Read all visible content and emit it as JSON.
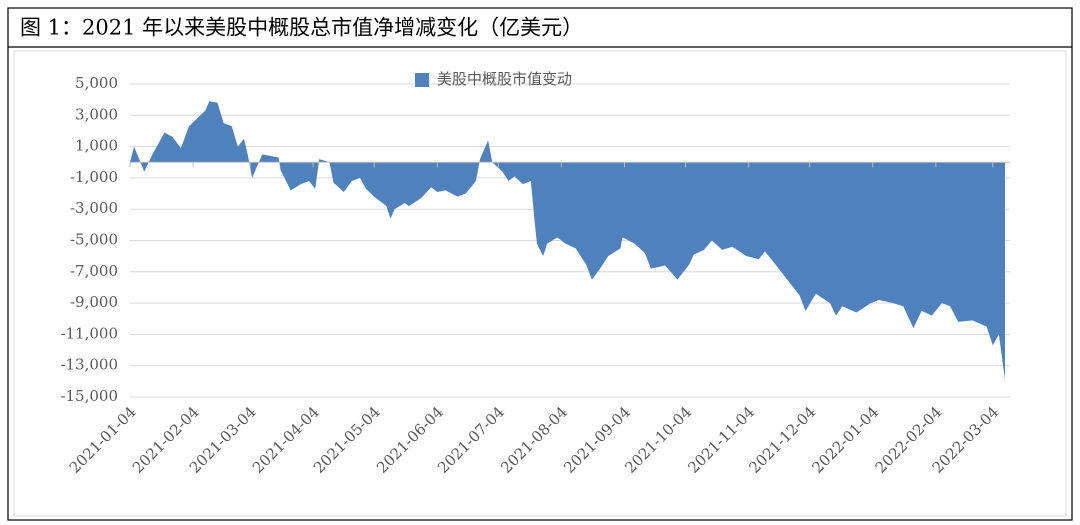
{
  "chart_data": {
    "type": "area",
    "title": "图 1：2021 年以来美股中概股总市值净增减变化（亿美元）",
    "x": [
      "2021-01-04",
      "2021-01-06",
      "2021-01-11",
      "2021-01-15",
      "2021-01-21",
      "2021-01-25",
      "2021-01-29",
      "2021-02-02",
      "2021-02-10",
      "2021-02-12",
      "2021-02-16",
      "2021-02-19",
      "2021-02-23",
      "2021-02-26",
      "2021-03-01",
      "2021-03-03",
      "2021-03-05",
      "2021-03-10",
      "2021-03-18",
      "2021-03-19",
      "2021-03-24",
      "2021-03-29",
      "2021-04-02",
      "2021-04-05",
      "2021-04-07",
      "2021-04-12",
      "2021-04-14",
      "2021-04-19",
      "2021-04-23",
      "2021-04-27",
      "2021-04-30",
      "2021-05-04",
      "2021-05-10",
      "2021-05-12",
      "2021-05-14",
      "2021-05-19",
      "2021-05-21",
      "2021-05-27",
      "2021-06-01",
      "2021-06-04",
      "2021-06-08",
      "2021-06-14",
      "2021-06-18",
      "2021-06-23",
      "2021-06-25",
      "2021-06-29",
      "2021-07-01",
      "2021-07-06",
      "2021-07-09",
      "2021-07-12",
      "2021-07-16",
      "2021-07-20",
      "2021-07-22",
      "2021-07-23",
      "2021-07-26",
      "2021-07-28",
      "2021-08-02",
      "2021-08-06",
      "2021-08-11",
      "2021-08-16",
      "2021-08-19",
      "2021-08-23",
      "2021-08-27",
      "2021-09-02",
      "2021-09-03",
      "2021-09-09",
      "2021-09-14",
      "2021-09-17",
      "2021-09-24",
      "2021-09-30",
      "2021-10-06",
      "2021-10-08",
      "2021-10-13",
      "2021-10-17",
      "2021-10-22",
      "2021-10-27",
      "2021-11-03",
      "2021-11-09",
      "2021-11-12",
      "2021-11-17",
      "2021-11-23",
      "2021-11-29",
      "2021-12-02",
      "2021-12-07",
      "2021-12-14",
      "2021-12-17",
      "2021-12-20",
      "2021-12-27",
      "2022-01-03",
      "2022-01-07",
      "2022-01-14",
      "2022-01-19",
      "2022-01-24",
      "2022-01-28",
      "2022-02-02",
      "2022-02-07",
      "2022-02-11",
      "2022-02-15",
      "2022-02-22",
      "2022-03-01",
      "2022-03-04",
      "2022-03-07",
      "2022-03-10"
    ],
    "series": [
      {
        "name": "美股中概股市值变动",
        "color": "#4f81bd",
        "values": [
          0,
          1000,
          -600,
          500,
          1900,
          1600,
          900,
          2300,
          3300,
          3900,
          3800,
          2500,
          2300,
          1000,
          1500,
          400,
          -1000,
          500,
          300,
          -500,
          -1800,
          -1400,
          -1200,
          -1700,
          200,
          0,
          -1300,
          -1900,
          -1200,
          -1000,
          -1700,
          -2200,
          -2800,
          -3600,
          -3000,
          -2600,
          -2800,
          -2300,
          -1600,
          -1900,
          -1800,
          -2200,
          -2000,
          -1200,
          200,
          1400,
          0,
          -600,
          -1200,
          -900,
          -1400,
          -1200,
          -4000,
          -5200,
          -6000,
          -5200,
          -4800,
          -5200,
          -5500,
          -6500,
          -7500,
          -6800,
          -6000,
          -5500,
          -4800,
          -5200,
          -5800,
          -6800,
          -6600,
          -7500,
          -6500,
          -5900,
          -5600,
          -5000,
          -5600,
          -5400,
          -6000,
          -6200,
          -5700,
          -6500,
          -7500,
          -8500,
          -9500,
          -8400,
          -9000,
          -9800,
          -9200,
          -9600,
          -9000,
          -8800,
          -9000,
          -9200,
          -10600,
          -9500,
          -9800,
          -9000,
          -9200,
          -10200,
          -10100,
          -10500,
          -11700,
          -11000,
          -13900
        ]
      }
    ],
    "xlim": [
      "2021-01-04",
      "2022-03-10"
    ],
    "xticks": [
      "2021-01-04",
      "2021-02-04",
      "2021-03-04",
      "2021-04-04",
      "2021-05-04",
      "2021-06-04",
      "2021-07-04",
      "2021-08-04",
      "2021-09-04",
      "2021-10-04",
      "2021-11-04",
      "2021-12-04",
      "2022-01-04",
      "2022-02-04",
      "2022-03-04"
    ],
    "ylim": [
      -15000,
      5000
    ],
    "yticks": [
      {
        "value": 5000,
        "label": "5,000"
      },
      {
        "value": 3000,
        "label": "3,000"
      },
      {
        "value": 1000,
        "label": "1,000"
      },
      {
        "value": -1000,
        "label": "-1,000"
      },
      {
        "value": -3000,
        "label": "-3,000"
      },
      {
        "value": -5000,
        "label": "-5,000"
      },
      {
        "value": -7000,
        "label": "-7,000"
      },
      {
        "value": -9000,
        "label": "-9,000"
      },
      {
        "value": -11000,
        "label": "-11,000"
      },
      {
        "value": -13000,
        "label": "-13,000"
      },
      {
        "value": -15000,
        "label": "-15,000"
      }
    ],
    "grid": true,
    "legend": "top"
  }
}
